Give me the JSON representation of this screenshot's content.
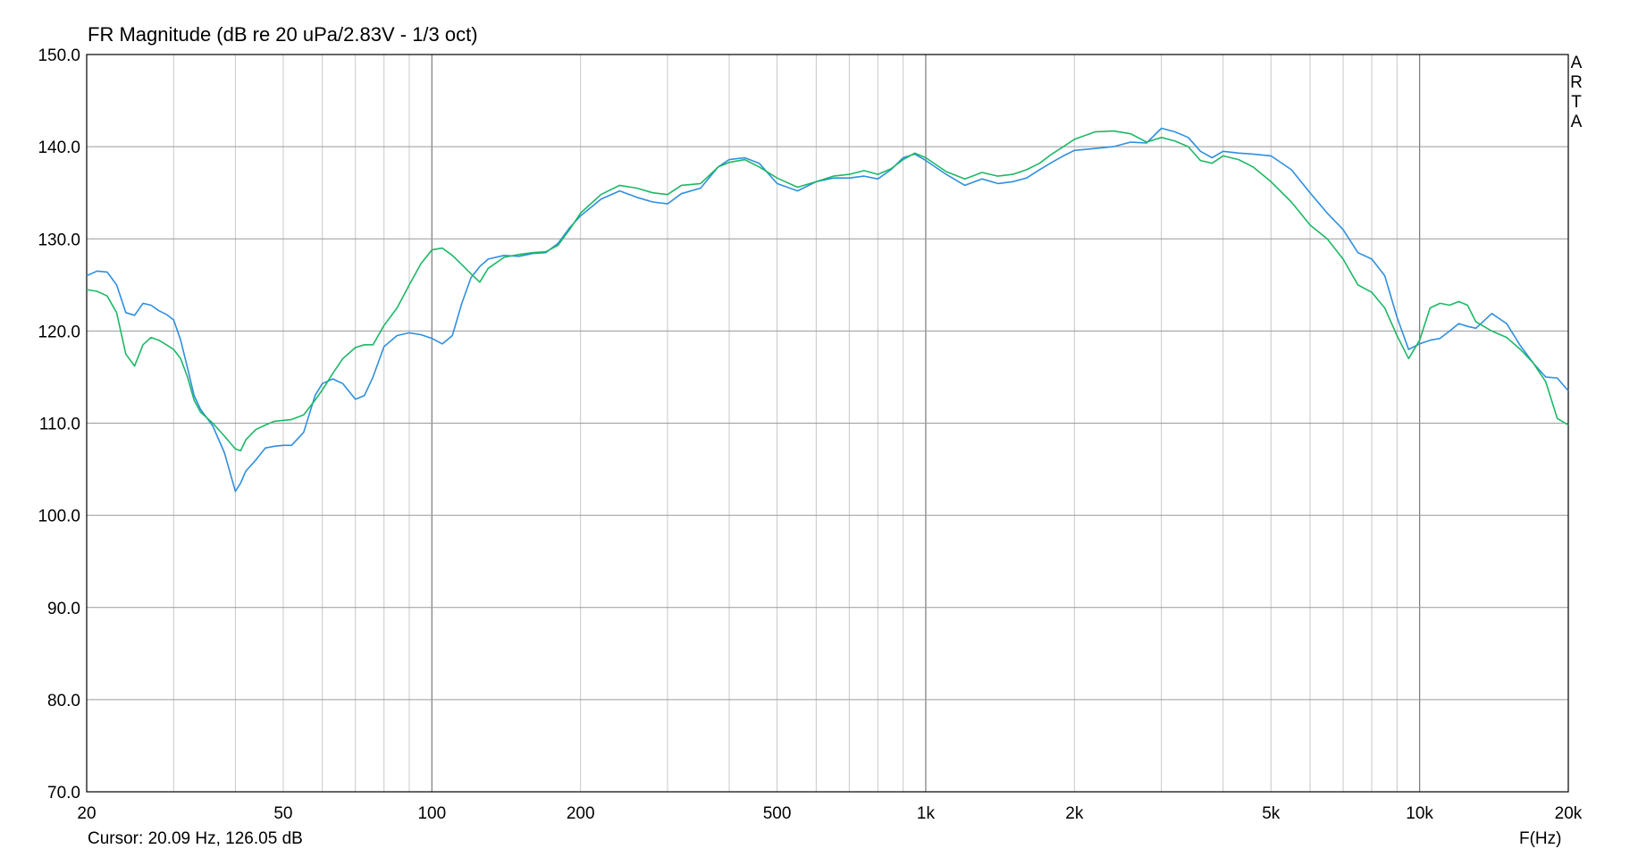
{
  "title": "FR Magnitude (dB re 20 uPa/2.83V - 1/3 oct)",
  "cursor_text": "Cursor: 20.09 Hz, 126.05 dB",
  "x_unit": "F(Hz)",
  "logo_text": "ARTA",
  "chart_data": {
    "type": "line",
    "title": "FR Magnitude (dB re 20 uPa/2.83V - 1/3 oct)",
    "xlabel": "F(Hz)",
    "ylabel": "",
    "x_scale": "log",
    "xlim": [
      20,
      20000
    ],
    "ylim": [
      70,
      150
    ],
    "grid": true,
    "y_ticks": [
      70,
      80,
      90,
      100,
      110,
      120,
      130,
      140,
      150
    ],
    "y_tick_labels": [
      "70.0",
      "80.0",
      "90.0",
      "100.0",
      "110.0",
      "120.0",
      "130.0",
      "140.0",
      "150.0"
    ],
    "x_ticks": [
      20,
      50,
      100,
      200,
      500,
      1000,
      2000,
      5000,
      10000,
      20000
    ],
    "x_tick_labels": [
      "20",
      "50",
      "100",
      "200",
      "500",
      "1k",
      "2k",
      "5k",
      "10k",
      "20k"
    ],
    "series": [
      {
        "color": "#2f8fdf",
        "x": [
          20,
          21,
          22,
          23,
          24,
          25,
          26,
          27,
          28,
          29,
          30,
          31,
          32,
          33,
          34,
          36,
          38,
          40,
          41,
          42,
          44,
          46,
          48,
          50,
          52,
          55,
          58,
          60,
          63,
          66,
          70,
          73,
          76,
          80,
          85,
          90,
          95,
          100,
          105,
          110,
          115,
          120,
          125,
          130,
          140,
          150,
          160,
          170,
          180,
          190,
          200,
          220,
          240,
          260,
          280,
          300,
          320,
          350,
          380,
          400,
          430,
          460,
          500,
          550,
          600,
          650,
          700,
          750,
          800,
          850,
          900,
          950,
          1000,
          1100,
          1200,
          1300,
          1400,
          1500,
          1600,
          1700,
          1800,
          1900,
          2000,
          2200,
          2400,
          2600,
          2800,
          3000,
          3200,
          3400,
          3600,
          3800,
          4000,
          4300,
          4600,
          5000,
          5500,
          6000,
          6500,
          7000,
          7500,
          8000,
          8500,
          9000,
          9500,
          10000,
          10500,
          11000,
          11500,
          12000,
          12500,
          13000,
          14000,
          15000,
          16000,
          17000,
          18000,
          19000,
          20000
        ],
        "y": [
          126.0,
          126.5,
          126.4,
          125.0,
          122.0,
          121.7,
          123.0,
          122.8,
          122.2,
          121.8,
          121.2,
          119.0,
          116.0,
          113.0,
          111.5,
          109.7,
          106.8,
          102.6,
          103.5,
          104.8,
          106.0,
          107.3,
          107.5,
          107.6,
          107.6,
          109.0,
          113.0,
          114.3,
          114.8,
          114.3,
          112.6,
          113.0,
          115.0,
          118.3,
          119.5,
          119.8,
          119.6,
          119.2,
          118.6,
          119.5,
          123.0,
          125.8,
          127.0,
          127.8,
          128.2,
          128.1,
          128.4,
          128.5,
          129.5,
          131.2,
          132.5,
          134.3,
          135.2,
          134.5,
          134.0,
          133.8,
          134.9,
          135.5,
          137.8,
          138.6,
          138.8,
          138.2,
          136.0,
          135.2,
          136.2,
          136.6,
          136.6,
          136.8,
          136.5,
          137.5,
          138.8,
          139.2,
          138.5,
          137.0,
          135.8,
          136.5,
          136.0,
          136.2,
          136.6,
          137.5,
          138.3,
          139.0,
          139.6,
          139.8,
          140.0,
          140.5,
          140.4,
          142.0,
          141.6,
          141.0,
          139.5,
          138.8,
          139.5,
          139.3,
          139.2,
          139.0,
          137.5,
          135.0,
          132.8,
          131.0,
          128.5,
          127.8,
          126.0,
          121.5,
          118.0,
          118.6,
          119.0,
          119.2,
          120.0,
          120.8,
          120.5,
          120.3,
          121.9,
          120.8,
          118.4,
          116.5,
          115.0,
          114.9,
          113.5
        ],
        "values": [
          126.0,
          126.5,
          126.4,
          125.0,
          122.0,
          121.7,
          123.0,
          122.8,
          122.2,
          121.8,
          121.2,
          119.0,
          116.0,
          113.0,
          111.5,
          109.7,
          106.8,
          102.6,
          103.5,
          104.8,
          106.0,
          107.3,
          107.5,
          107.6,
          107.6,
          109.0,
          113.0,
          114.3,
          114.8,
          114.3,
          112.6,
          113.0,
          115.0,
          118.3,
          119.5,
          119.8,
          119.6,
          119.2,
          118.6,
          119.5,
          123.0,
          125.8,
          127.0,
          127.8,
          128.2,
          128.1,
          128.4,
          128.5,
          129.5,
          131.2,
          132.5,
          134.3,
          135.2,
          134.5,
          134.0,
          133.8,
          134.9,
          135.5,
          137.8,
          138.6,
          138.8,
          138.2,
          136.0,
          135.2,
          136.2,
          136.6,
          136.6,
          136.8,
          136.5,
          137.5,
          138.8,
          139.2,
          138.5,
          137.0,
          135.8,
          136.5,
          136.0,
          136.2,
          136.6,
          137.5,
          138.3,
          139.0,
          139.6,
          139.8,
          140.0,
          140.5,
          140.4,
          142.0,
          141.6,
          141.0,
          139.5,
          138.8,
          139.5,
          139.3,
          139.2,
          139.0,
          137.5,
          135.0,
          132.8,
          131.0,
          128.5,
          127.8,
          126.0,
          121.5,
          118.0,
          118.6,
          119.0,
          119.2,
          120.0,
          120.8,
          120.5,
          120.3,
          121.9,
          120.8,
          118.4,
          116.5,
          115.0,
          114.9,
          113.5
        ]
      },
      {
        "color": "#1db866",
        "x": [
          20,
          21,
          22,
          23,
          24,
          25,
          26,
          27,
          28,
          29,
          30,
          31,
          32,
          33,
          34,
          36,
          38,
          40,
          41,
          42,
          44,
          46,
          48,
          50,
          52,
          55,
          58,
          60,
          63,
          66,
          70,
          73,
          76,
          80,
          85,
          90,
          95,
          100,
          105,
          110,
          115,
          120,
          125,
          130,
          140,
          150,
          160,
          170,
          180,
          190,
          200,
          220,
          240,
          260,
          280,
          300,
          320,
          350,
          380,
          400,
          430,
          460,
          500,
          550,
          600,
          650,
          700,
          750,
          800,
          850,
          900,
          950,
          1000,
          1100,
          1200,
          1300,
          1400,
          1500,
          1600,
          1700,
          1800,
          1900,
          2000,
          2200,
          2400,
          2600,
          2800,
          3000,
          3200,
          3400,
          3600,
          3800,
          4000,
          4300,
          4600,
          5000,
          5500,
          6000,
          6500,
          7000,
          7500,
          8000,
          8500,
          9000,
          9500,
          10000,
          10500,
          11000,
          11500,
          12000,
          12500,
          13000,
          14000,
          15000,
          16000,
          17000,
          18000,
          19000,
          20000
        ],
        "y": [
          124.5,
          124.3,
          123.8,
          122.0,
          117.5,
          116.2,
          118.5,
          119.3,
          119.0,
          118.5,
          118.0,
          117.0,
          115.0,
          112.5,
          111.2,
          110.0,
          108.6,
          107.2,
          107.0,
          108.2,
          109.3,
          109.8,
          110.2,
          110.3,
          110.4,
          110.9,
          112.5,
          113.6,
          115.4,
          117.0,
          118.2,
          118.5,
          118.5,
          120.6,
          122.5,
          125.0,
          127.3,
          128.8,
          129.0,
          128.2,
          127.2,
          126.2,
          125.3,
          126.8,
          128.0,
          128.3,
          128.5,
          128.6,
          129.3,
          131.0,
          132.8,
          134.8,
          135.8,
          135.5,
          135.0,
          134.8,
          135.8,
          136.0,
          137.8,
          138.3,
          138.6,
          137.8,
          136.6,
          135.6,
          136.2,
          136.8,
          137.0,
          137.4,
          137.0,
          137.6,
          138.6,
          139.3,
          138.8,
          137.3,
          136.5,
          137.2,
          136.8,
          137.0,
          137.5,
          138.2,
          139.2,
          140.0,
          140.8,
          141.6,
          141.7,
          141.4,
          140.5,
          141.0,
          140.6,
          140.0,
          138.5,
          138.2,
          139.0,
          138.6,
          137.8,
          136.2,
          134.0,
          131.5,
          130.0,
          127.8,
          125.0,
          124.2,
          122.5,
          119.5,
          117.0,
          119.0,
          122.5,
          123.0,
          122.8,
          123.2,
          122.8,
          121.0,
          120.0,
          119.3,
          118.0,
          116.5,
          114.5,
          110.5,
          109.8
        ],
        "values": [
          124.5,
          124.3,
          123.8,
          122.0,
          117.5,
          116.2,
          118.5,
          119.3,
          119.0,
          118.5,
          118.0,
          117.0,
          115.0,
          112.5,
          111.2,
          110.0,
          108.6,
          107.2,
          107.0,
          108.2,
          109.3,
          109.8,
          110.2,
          110.3,
          110.4,
          110.9,
          112.5,
          113.6,
          115.4,
          117.0,
          118.2,
          118.5,
          118.5,
          120.6,
          122.5,
          125.0,
          127.3,
          128.8,
          129.0,
          128.2,
          127.2,
          126.2,
          125.3,
          126.8,
          128.0,
          128.3,
          128.5,
          128.6,
          129.3,
          131.0,
          132.8,
          134.8,
          135.8,
          135.5,
          135.0,
          134.8,
          135.8,
          136.0,
          137.8,
          138.3,
          138.6,
          137.8,
          136.6,
          135.6,
          136.2,
          136.8,
          137.0,
          137.4,
          137.0,
          137.6,
          138.6,
          139.3,
          138.8,
          137.3,
          136.5,
          137.2,
          136.8,
          137.0,
          137.5,
          138.2,
          139.2,
          140.0,
          140.8,
          141.6,
          141.7,
          141.4,
          140.5,
          141.0,
          140.6,
          140.0,
          138.5,
          138.2,
          139.0,
          138.6,
          137.8,
          136.2,
          134.0,
          131.5,
          130.0,
          127.8,
          125.0,
          124.2,
          122.5,
          119.5,
          117.0,
          119.0,
          122.5,
          123.0,
          122.8,
          123.2,
          122.8,
          121.0,
          120.0,
          119.3,
          118.0,
          116.5,
          114.5,
          110.5,
          109.8
        ]
      }
    ]
  }
}
